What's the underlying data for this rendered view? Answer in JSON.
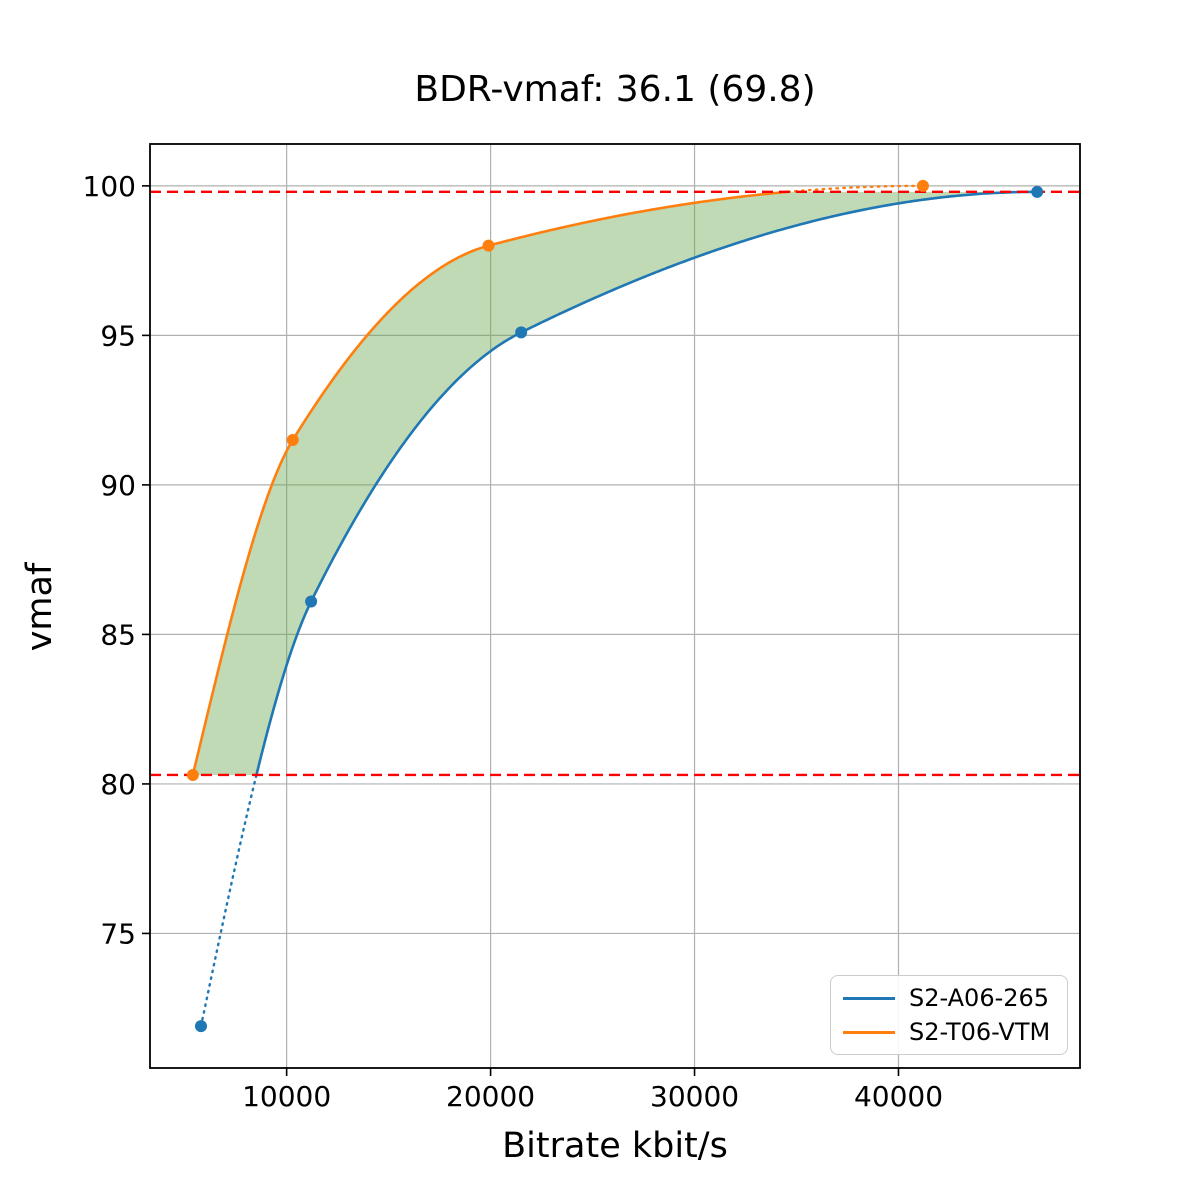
{
  "chart_data": {
    "type": "line",
    "title": "BDR-vmaf: 36.1 (69.8)",
    "xlabel": "Bitrate kbit/s",
    "ylabel": "vmaf",
    "xlim": [
      3300,
      48900
    ],
    "ylim": [
      70.5,
      101.4
    ],
    "xticks": [
      10000,
      20000,
      30000,
      40000
    ],
    "yticks": [
      75,
      80,
      85,
      90,
      95,
      100
    ],
    "grid": true,
    "grid_color": "#b0b0b0",
    "legend_position": "lower right",
    "series": [
      {
        "name": "S2-A06-265",
        "color": "#1f77b4",
        "points": [
          [
            5800,
            71.9
          ],
          [
            11200,
            86.1
          ],
          [
            21500,
            95.1
          ],
          [
            46800,
            99.8
          ]
        ]
      },
      {
        "name": "S2-T06-VTM",
        "color": "#ff7f0e",
        "points": [
          [
            5400,
            80.3
          ],
          [
            10300,
            91.5
          ],
          [
            19900,
            98.0
          ],
          [
            41200,
            100.0
          ]
        ]
      }
    ],
    "bd_interval": {
      "lower": 80.3,
      "upper": 99.8,
      "line_color": "#ff0000"
    },
    "shaded_region": {
      "color": "#6aa84f",
      "opacity": 0.42
    }
  }
}
